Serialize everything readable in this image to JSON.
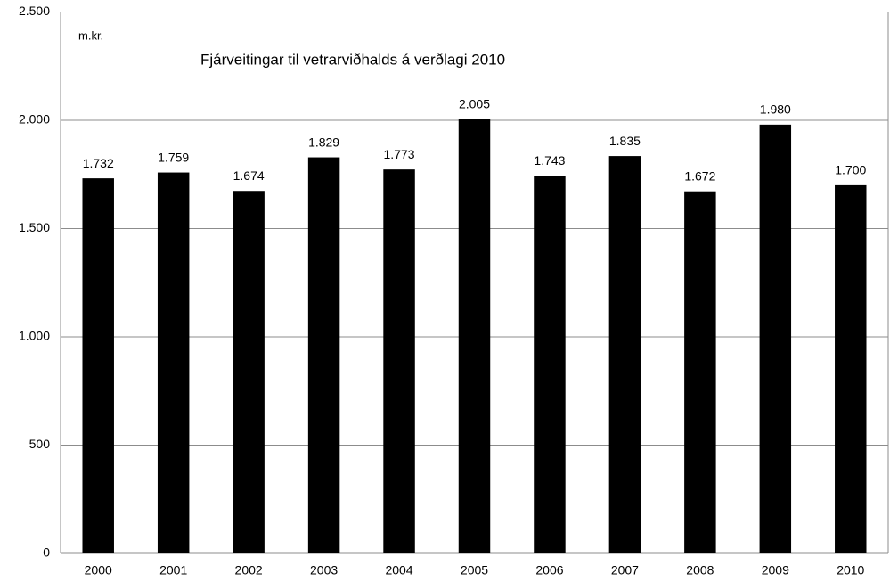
{
  "chart_data": {
    "type": "bar",
    "title": "Fjárveitingar til vetrarviðhalds á verðlagi 2010",
    "unit_label": "m.kr.",
    "categories": [
      "2000",
      "2001",
      "2002",
      "2003",
      "2004",
      "2005",
      "2006",
      "2007",
      "2008",
      "2009",
      "2010"
    ],
    "values": [
      1732,
      1759,
      1674,
      1829,
      1773,
      2005,
      1743,
      1835,
      1672,
      1980,
      1700
    ],
    "value_labels": [
      "1.732",
      "1.759",
      "1.674",
      "1.829",
      "1.773",
      "2.005",
      "1.743",
      "1.835",
      "1.672",
      "1.980",
      "1.700"
    ],
    "color": "#000000",
    "ylim": [
      0,
      2500
    ],
    "yticks": [
      0,
      500,
      {
        "value": 1000,
        "label": "1.000"
      },
      {
        "value": 1500,
        "label": "1.500"
      },
      {
        "value": 2000,
        "label": "2.000"
      },
      {
        "value": 2500,
        "label": "2.500"
      }
    ],
    "grid": true
  }
}
